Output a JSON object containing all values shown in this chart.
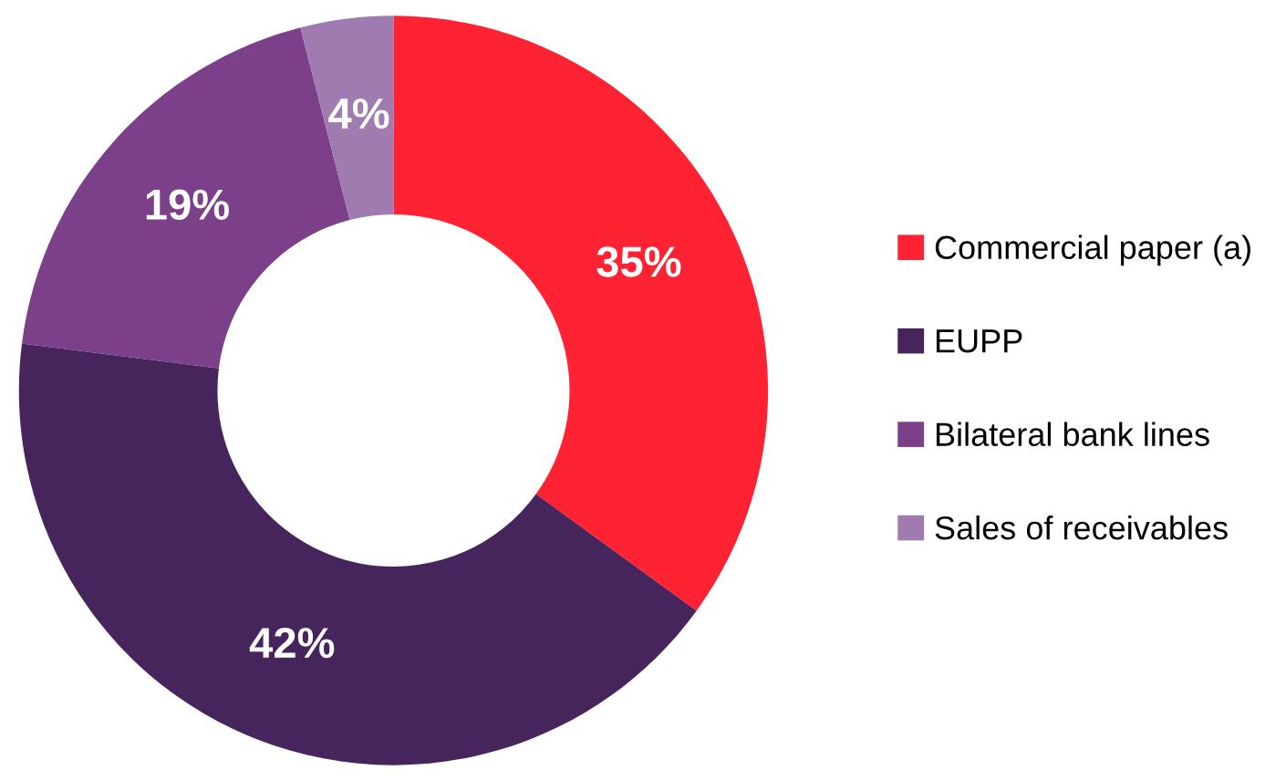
{
  "chart_data": {
    "type": "donut",
    "categories": [
      "Commercial paper (a)",
      "EUPP",
      "Bilateral bank lines",
      "Sales of receivables"
    ],
    "values": [
      35,
      42,
      19,
      4
    ],
    "colors": [
      "#ff2233",
      "#46245c",
      "#7c3f8a",
      "#a07bb0"
    ],
    "value_labels": [
      "35%",
      "42%",
      "19%",
      "4%"
    ],
    "legend": "right"
  }
}
